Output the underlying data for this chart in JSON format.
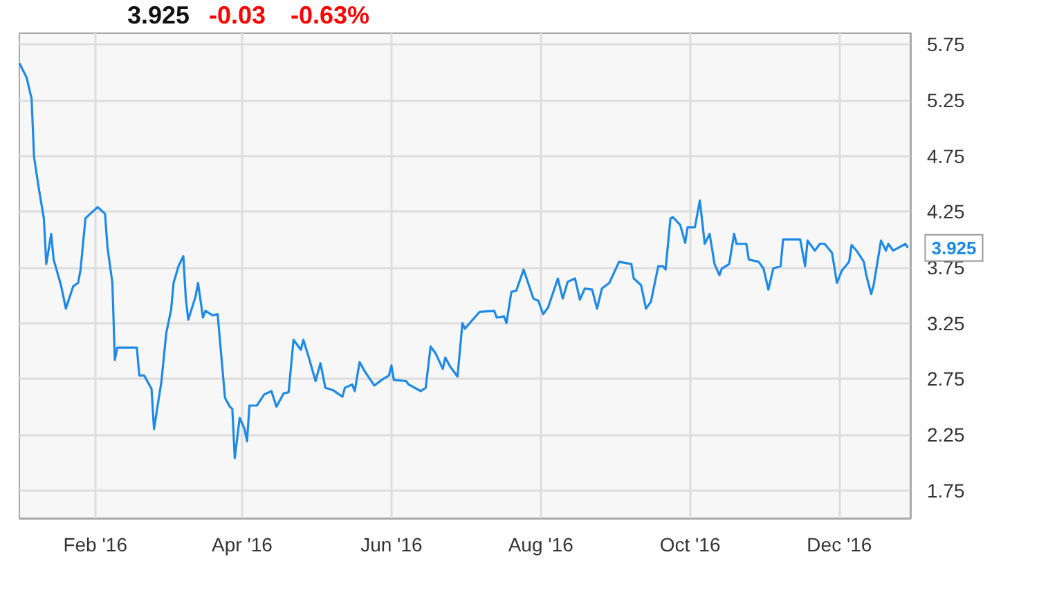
{
  "chart_data": {
    "type": "line",
    "x": [
      "2016-01-01",
      "2016-01-04",
      "2016-01-06",
      "2016-01-07",
      "2016-01-09",
      "2016-01-11",
      "2016-01-12",
      "2016-01-14",
      "2016-01-15",
      "2016-01-18",
      "2016-01-20",
      "2016-01-23",
      "2016-01-25",
      "2016-01-26",
      "2016-01-28",
      "2016-01-30",
      "2016-02-02",
      "2016-02-05",
      "2016-02-06",
      "2016-02-08",
      "2016-02-09",
      "2016-02-10",
      "2016-02-18",
      "2016-02-19",
      "2016-02-21",
      "2016-02-24",
      "2016-02-25",
      "2016-02-28",
      "2016-03-01",
      "2016-03-03",
      "2016-03-04",
      "2016-03-06",
      "2016-03-08",
      "2016-03-09",
      "2016-03-10",
      "2016-03-13",
      "2016-03-14",
      "2016-03-16",
      "2016-03-17",
      "2016-03-20",
      "2016-03-22",
      "2016-03-25",
      "2016-03-27",
      "2016-03-28",
      "2016-03-29",
      "2016-03-31",
      "2016-04-02",
      "2016-04-03",
      "2016-04-04",
      "2016-04-07",
      "2016-04-10",
      "2016-04-13",
      "2016-04-15",
      "2016-04-18",
      "2016-04-20",
      "2016-04-22",
      "2016-04-25",
      "2016-04-26",
      "2016-04-28",
      "2016-05-01",
      "2016-05-03",
      "2016-05-05",
      "2016-05-08",
      "2016-05-12",
      "2016-05-13",
      "2016-05-16",
      "2016-05-17",
      "2016-05-19",
      "2016-05-21",
      "2016-05-25",
      "2016-05-28",
      "2016-05-31",
      "2016-06-01",
      "2016-06-02",
      "2016-06-07",
      "2016-06-08",
      "2016-06-13",
      "2016-06-15",
      "2016-06-17",
      "2016-06-19",
      "2016-06-22",
      "2016-06-23",
      "2016-06-25",
      "2016-06-28",
      "2016-06-30",
      "2016-07-01",
      "2016-07-05",
      "2016-07-07",
      "2016-07-13",
      "2016-07-14",
      "2016-07-17",
      "2016-07-18",
      "2016-07-20",
      "2016-07-22",
      "2016-07-25",
      "2016-07-29",
      "2016-07-31",
      "2016-08-02",
      "2016-08-04",
      "2016-08-08",
      "2016-08-10",
      "2016-08-12",
      "2016-08-15",
      "2016-08-17",
      "2016-08-19",
      "2016-08-22",
      "2016-08-24",
      "2016-08-26",
      "2016-08-29",
      "2016-09-02",
      "2016-09-07",
      "2016-09-08",
      "2016-09-11",
      "2016-09-13",
      "2016-09-15",
      "2016-09-18",
      "2016-09-20",
      "2016-09-21",
      "2016-09-23",
      "2016-09-24",
      "2016-09-27",
      "2016-09-29",
      "2016-09-30",
      "2016-10-03",
      "2016-10-05",
      "2016-10-07",
      "2016-10-09",
      "2016-10-11",
      "2016-10-13",
      "2016-10-14",
      "2016-10-17",
      "2016-10-19",
      "2016-10-20",
      "2016-10-24",
      "2016-10-25",
      "2016-10-29",
      "2016-10-31",
      "2016-11-02",
      "2016-11-04",
      "2016-11-07",
      "2016-11-08",
      "2016-11-15",
      "2016-11-17",
      "2016-11-18",
      "2016-11-21",
      "2016-11-23",
      "2016-11-25",
      "2016-11-28",
      "2016-11-30",
      "2016-12-02",
      "2016-12-05",
      "2016-12-06",
      "2016-12-08",
      "2016-12-11",
      "2016-12-12",
      "2016-12-14",
      "2016-12-15",
      "2016-12-18",
      "2016-12-20",
      "2016-12-21",
      "2016-12-23",
      "2016-12-28",
      "2016-12-29"
    ],
    "series": [
      {
        "color": "#1e8ae6",
        "values": [
          5.58,
          5.45,
          5.26,
          4.74,
          4.45,
          4.19,
          3.78,
          4.05,
          3.82,
          3.59,
          3.38,
          3.58,
          3.61,
          3.73,
          4.19,
          4.23,
          4.29,
          4.23,
          3.93,
          3.61,
          2.92,
          3.03,
          3.03,
          2.78,
          2.78,
          2.66,
          2.3,
          2.72,
          3.16,
          3.37,
          3.61,
          3.76,
          3.85,
          3.47,
          3.28,
          3.49,
          3.61,
          3.3,
          3.36,
          3.32,
          3.33,
          2.58,
          2.5,
          2.48,
          2.04,
          2.4,
          2.3,
          2.19,
          2.51,
          2.51,
          2.61,
          2.64,
          2.5,
          2.62,
          2.63,
          3.1,
          3.01,
          3.1,
          2.96,
          2.73,
          2.89,
          2.67,
          2.65,
          2.59,
          2.67,
          2.7,
          2.64,
          2.9,
          2.82,
          2.69,
          2.74,
          2.78,
          2.87,
          2.74,
          2.73,
          2.7,
          2.64,
          2.67,
          3.04,
          2.98,
          2.84,
          2.94,
          2.86,
          2.77,
          3.25,
          3.2,
          3.3,
          3.35,
          3.36,
          3.3,
          3.31,
          3.25,
          3.53,
          3.54,
          3.73,
          3.47,
          3.45,
          3.33,
          3.39,
          3.65,
          3.47,
          3.62,
          3.65,
          3.46,
          3.56,
          3.55,
          3.38,
          3.56,
          3.61,
          3.8,
          3.78,
          3.65,
          3.59,
          3.38,
          3.44,
          3.76,
          3.76,
          3.73,
          4.19,
          4.2,
          4.13,
          3.97,
          4.11,
          4.11,
          4.35,
          3.96,
          4.05,
          3.78,
          3.68,
          3.74,
          3.78,
          4.05,
          3.96,
          3.96,
          3.82,
          3.8,
          3.74,
          3.55,
          3.74,
          3.76,
          4.0,
          4.0,
          3.76,
          3.99,
          3.9,
          3.96,
          3.96,
          3.88,
          3.61,
          3.72,
          3.8,
          3.95,
          3.9,
          3.8,
          3.68,
          3.51,
          3.59,
          3.99,
          3.9,
          3.96,
          3.9,
          3.96,
          3.925
        ]
      }
    ],
    "xlim": [
      "2016-01-01",
      "2016-12-30"
    ],
    "xticks": [
      {
        "value": "2016-02-01",
        "label": "Feb '16"
      },
      {
        "value": "2016-04-01",
        "label": "Apr '16"
      },
      {
        "value": "2016-06-01",
        "label": "Jun '16"
      },
      {
        "value": "2016-08-01",
        "label": "Aug '16"
      },
      {
        "value": "2016-10-01",
        "label": "Oct '16"
      },
      {
        "value": "2016-12-01",
        "label": "Dec '16"
      }
    ],
    "ylim": [
      1.5,
      5.85
    ],
    "yticks": [
      1.75,
      2.25,
      2.75,
      3.25,
      3.75,
      4.25,
      4.75,
      5.25,
      5.75
    ],
    "grid": true,
    "annotations": [
      "3.925",
      "-0.03",
      "-0.63%",
      {
        "text": "3.925",
        "x": "2016-12-29",
        "y": 3.925
      }
    ]
  }
}
